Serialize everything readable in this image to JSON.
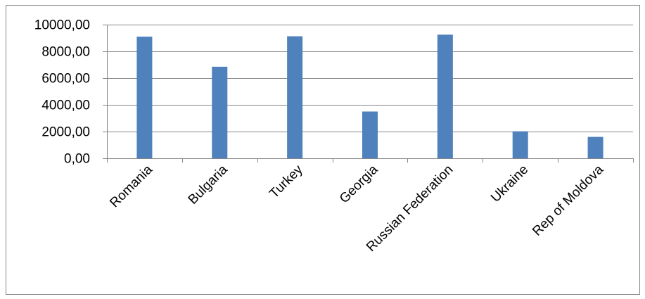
{
  "chart_data": {
    "type": "bar",
    "categories": [
      "Romania",
      "Bulgaria",
      "Turkey",
      "Georgia",
      "Russian Federation",
      "Ukraine",
      "Rep of Moldova"
    ],
    "values": [
      9100,
      6850,
      9130,
      3500,
      9250,
      2020,
      1600
    ],
    "ylim": [
      0,
      10000
    ],
    "yticks": [
      "0,00",
      "2000,00",
      "4000,00",
      "6000,00",
      "8000,00",
      "10000,00"
    ],
    "ytick_values": [
      0,
      2000,
      4000,
      6000,
      8000,
      10000
    ],
    "grid": true,
    "legend": "none",
    "bar_color": "#4F81BD",
    "grid_color": "#868686"
  }
}
